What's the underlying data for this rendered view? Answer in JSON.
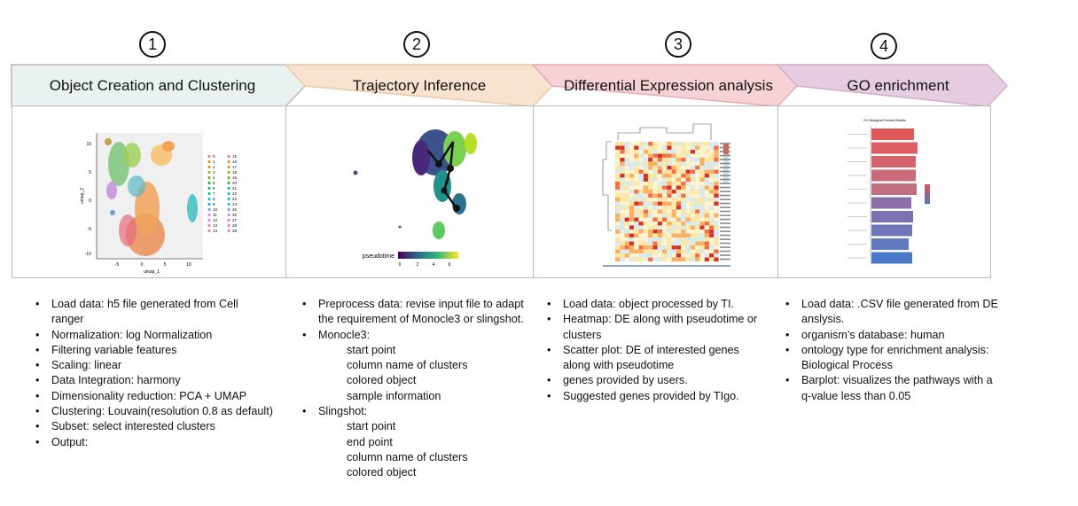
{
  "steps": [
    {
      "number": "1",
      "title": "Object Creation and Clustering",
      "color": "#e9f2f1"
    },
    {
      "number": "2",
      "title": "Trajectory Inference",
      "color": "#f7e3cf"
    },
    {
      "number": "3",
      "title": "Differential Expression analysis",
      "color": "#f6d2d6"
    },
    {
      "number": "4",
      "title": "GO enrichment",
      "color": "#e5cce0"
    }
  ],
  "panel1": {
    "xlabel": "umap_1",
    "ylabel": "umap_2",
    "yticks": [
      "10",
      "5",
      "0",
      "-5",
      "-10"
    ],
    "xticks": [
      "-5",
      "0",
      "5",
      "10"
    ],
    "legend_left": [
      "0",
      "1",
      "2",
      "3",
      "4",
      "5",
      "6",
      "7",
      "8",
      "9",
      "10",
      "11",
      "12",
      "13",
      "14"
    ],
    "legend_right": [
      "15",
      "16",
      "17",
      "18",
      "19",
      "20",
      "21",
      "22",
      "23",
      "24",
      "25",
      "26",
      "27",
      "28",
      "29"
    ]
  },
  "panel2": {
    "colorbar_label": "pseudotime",
    "colorbar_ticks": [
      "0",
      "2",
      "4",
      "6"
    ]
  },
  "panel4": {
    "title": "GO Biological Process Results"
  },
  "lists": {
    "col1": [
      {
        "t": "Load data: h5 file generated from Cell",
        "k": "b"
      },
      {
        "t": "ranger",
        "k": "c"
      },
      {
        "t": "Normalization: log Normalization",
        "k": "b"
      },
      {
        "t": "Filtering variable features",
        "k": "b"
      },
      {
        "t": "Scaling: linear",
        "k": "b"
      },
      {
        "t": "Data Integration: harmony",
        "k": "b"
      },
      {
        "t": "Dimensionality reduction: PCA + UMAP",
        "k": "b"
      },
      {
        "t": "Clustering: Louvain(resolution 0.8 as default)",
        "k": "b"
      },
      {
        "t": "Subset: select interested clusters",
        "k": "b"
      },
      {
        "t": "Output:",
        "k": "b"
      }
    ],
    "col2": [
      {
        "t": "Preprocess data: revise input file to adapt",
        "k": "b"
      },
      {
        "t": "the requirement of Monocle3 or slingshot.",
        "k": "c"
      },
      {
        "t": "Monocle3:",
        "k": "b"
      },
      {
        "t": "start point",
        "k": "s"
      },
      {
        "t": "column name of clusters",
        "k": "s"
      },
      {
        "t": "colored object",
        "k": "s"
      },
      {
        "t": "sample information",
        "k": "s"
      },
      {
        "t": "Slingshot:",
        "k": "b"
      },
      {
        "t": "start point",
        "k": "s"
      },
      {
        "t": "end point",
        "k": "s"
      },
      {
        "t": "column name of clusters",
        "k": "s"
      },
      {
        "t": "colored object",
        "k": "s"
      }
    ],
    "col3": [
      {
        "t": "Load data: object processed by TI.",
        "k": "b"
      },
      {
        "t": "Heatmap: DE along with pseudotime or",
        "k": "b"
      },
      {
        "t": "clusters",
        "k": "c"
      },
      {
        "t": "Scatter plot: DE of interested genes",
        "k": "b"
      },
      {
        "t": "along   with pseudotime",
        "k": "c"
      },
      {
        "t": "genes provided by users.",
        "k": "b"
      },
      {
        "t": "Suggested genes provided by TIgo.",
        "k": "b"
      }
    ],
    "col4": [
      {
        "t": "Load data: .CSV file generated from DE",
        "k": "b"
      },
      {
        "t": "anslysis.",
        "k": "c"
      },
      {
        "t": "organism’s database: human",
        "k": "b"
      },
      {
        "t": "ontology type for enrichment analysis:",
        "k": "b"
      },
      {
        "t": "Biological Process",
        "k": "c"
      },
      {
        "t": "Barplot: visualizes the pathways with a",
        "k": "b"
      },
      {
        "t": "q-value less than 0.05",
        "k": "c"
      }
    ]
  }
}
